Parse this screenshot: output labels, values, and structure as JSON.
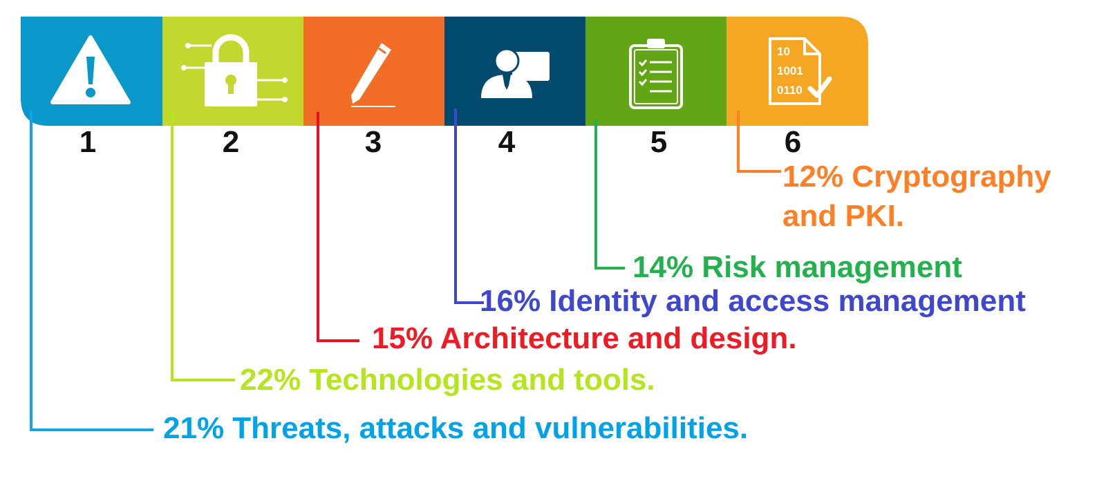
{
  "colors": {
    "blue": "#0a97c9",
    "lime": "#c3d82e",
    "orange": "#f26e26",
    "navy": "#034b6e",
    "green": "#62a616",
    "amber": "#f5a623",
    "line_blue": "#0ea5e9",
    "line_lime": "#b5e61d",
    "line_red": "#e81123",
    "line_indigo": "#3f48cc",
    "line_green": "#22b14c",
    "line_orange": "#ff7f27",
    "text_blue": "#00a2e8",
    "text_lime": "#b5e61d",
    "text_red": "#ed1c24",
    "text_indigo": "#3f48cc",
    "text_green": "#22b14c",
    "text_orange": "#ff7f27"
  },
  "segments": [
    {
      "number": "1",
      "icon": "warning-icon"
    },
    {
      "number": "2",
      "icon": "padlock-circuit-icon"
    },
    {
      "number": "3",
      "icon": "pen-icon"
    },
    {
      "number": "4",
      "icon": "presenter-icon"
    },
    {
      "number": "5",
      "icon": "clipboard-checklist-icon"
    },
    {
      "number": "6",
      "icon": "binary-document-check-icon",
      "binary_lines": [
        "10",
        "1001",
        "0110"
      ]
    }
  ],
  "labels": {
    "item1": "21%  Threats, attacks and vulnerabilities.",
    "item2": "22% Technologies and tools.",
    "item3": "15% Architecture and design.",
    "item4": "16% Identity and access management",
    "item5": "14% Risk management",
    "item6_line1": "12% Cryptography",
    "item6_line2": "and PKI."
  }
}
